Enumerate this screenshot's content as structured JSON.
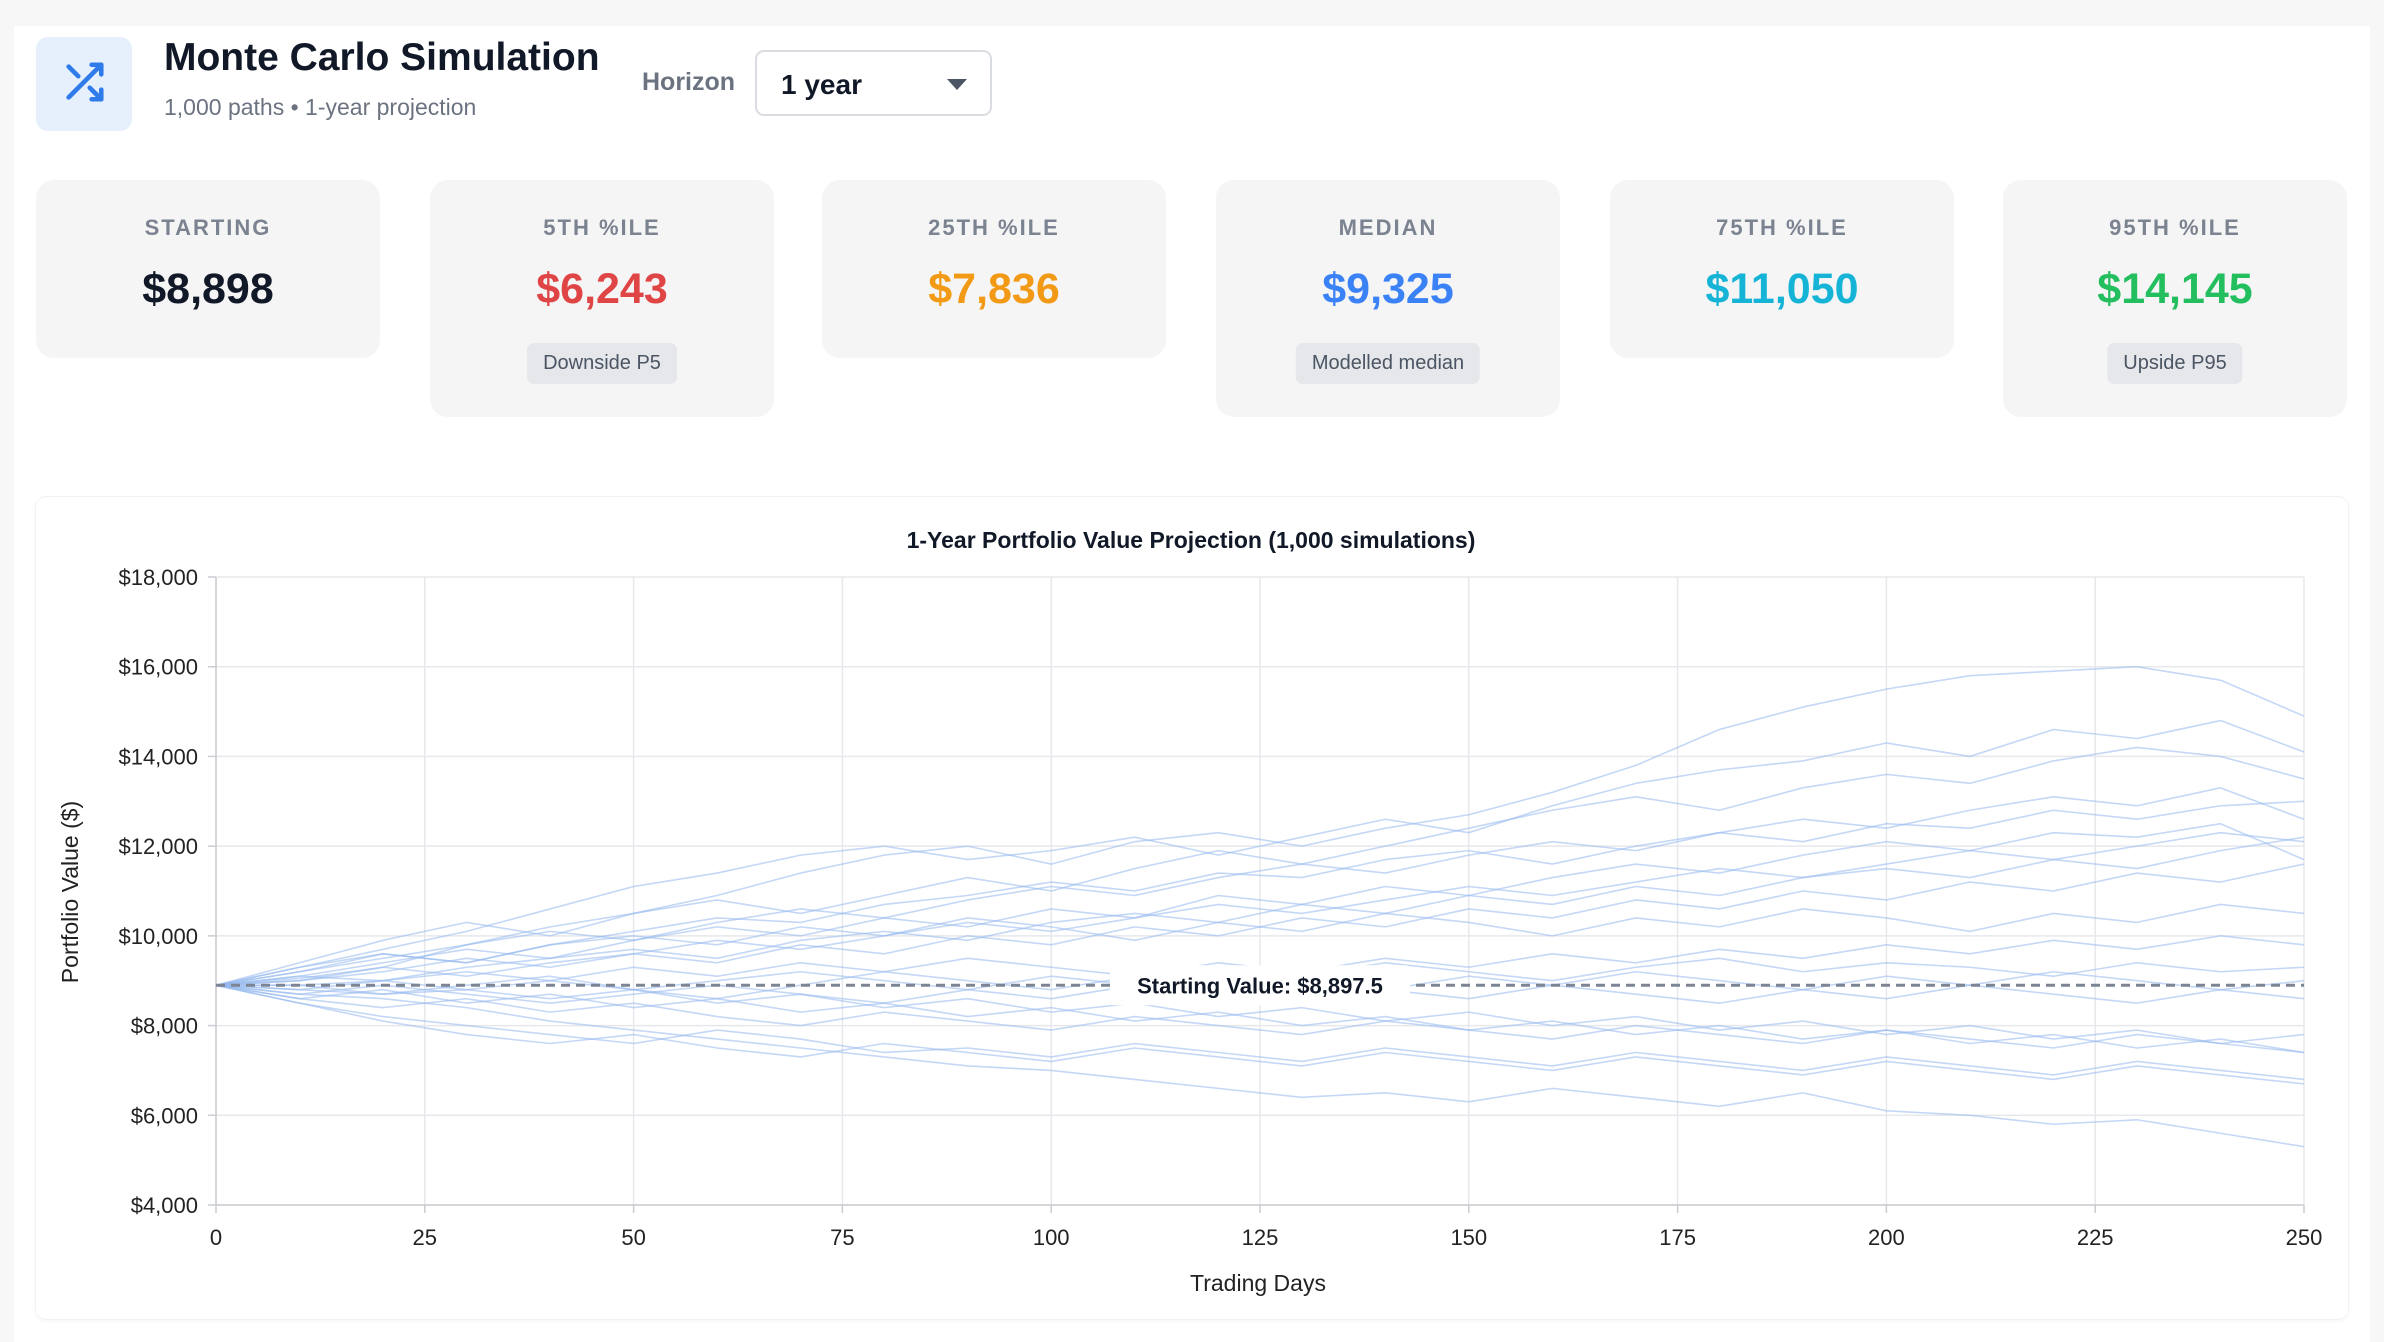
{
  "header": {
    "title": "Monte Carlo Simulation",
    "subtitle": "1,000 paths • 1-year projection",
    "app_icon": "shuffle-icon",
    "horizon_label": "Horizon",
    "horizon_value": "1 year",
    "horizon_icon": "chevron-down-icon"
  },
  "stats": [
    {
      "label": "STARTING",
      "value": "$8,898",
      "color": "#111827",
      "badge": ""
    },
    {
      "label": "5TH %ILE",
      "value": "$6,243",
      "color": "#e04545",
      "badge": "Downside P5"
    },
    {
      "label": "25TH %ILE",
      "value": "$7,836",
      "color": "#f29a16",
      "badge": ""
    },
    {
      "label": "MEDIAN",
      "value": "$9,325",
      "color": "#3b82f6",
      "badge": "Modelled median"
    },
    {
      "label": "75TH %ILE",
      "value": "$11,050",
      "color": "#15b4d6",
      "badge": ""
    },
    {
      "label": "95TH %ILE",
      "value": "$14,145",
      "color": "#23be5e",
      "badge": "Upside P95"
    }
  ],
  "chart_data": {
    "type": "line",
    "title": "1-Year Portfolio Value Projection (1,000 simulations)",
    "xlabel": "Trading Days",
    "ylabel": "Portfolio Value ($)",
    "xlim": [
      0,
      250
    ],
    "ylim": [
      4000,
      18000
    ],
    "x_ticks": [
      0,
      25,
      50,
      75,
      100,
      125,
      150,
      175,
      200,
      225,
      250
    ],
    "x_tick_labels": [
      "0",
      "25",
      "50",
      "75",
      "100",
      "125",
      "150",
      "175",
      "200",
      "225",
      "250"
    ],
    "y_ticks": [
      4000,
      6000,
      8000,
      10000,
      12000,
      14000,
      16000,
      18000
    ],
    "y_tick_labels": [
      "$4,000",
      "$6,000",
      "$8,000",
      "$10,000",
      "$12,000",
      "$14,000",
      "$16,000",
      "$18,000"
    ],
    "grid": true,
    "series_color": "#93b8ee",
    "reference_line": {
      "y": 8897.5,
      "label": "Starting Value: $8,897.5",
      "color": "#7d8594"
    },
    "x": [
      0,
      10,
      20,
      30,
      40,
      50,
      60,
      70,
      80,
      90,
      100,
      110,
      120,
      130,
      140,
      150,
      160,
      170,
      180,
      190,
      200,
      210,
      220,
      230,
      240,
      250
    ],
    "series": [
      {
        "values": [
          8898,
          9050,
          9300,
          9800,
          10200,
          10500,
          10900,
          11400,
          11800,
          12000,
          11600,
          12100,
          12300,
          12000,
          12400,
          12700,
          13200,
          13800,
          14600,
          15100,
          15500,
          15800,
          15900,
          16000,
          15700,
          14900
        ]
      },
      {
        "values": [
          8898,
          8700,
          8600,
          8400,
          8100,
          7900,
          7700,
          7500,
          7300,
          7100,
          7000,
          6800,
          6600,
          6400,
          6500,
          6300,
          6600,
          6400,
          6200,
          6500,
          6100,
          6000,
          5800,
          5900,
          5600,
          5300
        ]
      },
      {
        "values": [
          8898,
          9300,
          9700,
          10100,
          10600,
          11100,
          11400,
          11800,
          12000,
          11700,
          11900,
          12200,
          11800,
          12200,
          12600,
          12300,
          12900,
          13400,
          13700,
          13900,
          14300,
          14000,
          14600,
          14400,
          14800,
          14100
        ]
      },
      {
        "values": [
          8898,
          8800,
          8700,
          8900,
          9100,
          8800,
          8600,
          8900,
          9200,
          9000,
          8800,
          9100,
          9300,
          9100,
          9400,
          9200,
          9000,
          9300,
          9500,
          9200,
          9400,
          9300,
          9100,
          9400,
          9200,
          9300
        ]
      },
      {
        "values": [
          8898,
          9200,
          9600,
          9400,
          9800,
          10100,
          10400,
          10300,
          10700,
          10900,
          11200,
          11000,
          11400,
          11300,
          11700,
          11900,
          11600,
          12000,
          12300,
          12100,
          12500,
          12400,
          12800,
          12600,
          12900,
          13000
        ]
      },
      {
        "values": [
          8898,
          8500,
          8200,
          8000,
          7800,
          7600,
          7900,
          7700,
          7400,
          7500,
          7300,
          7600,
          7400,
          7200,
          7500,
          7300,
          7100,
          7400,
          7200,
          7000,
          7300,
          7100,
          6900,
          7200,
          7000,
          6800
        ]
      },
      {
        "values": [
          8898,
          9100,
          9400,
          9700,
          9500,
          9900,
          10200,
          10000,
          10400,
          10200,
          10600,
          10400,
          10900,
          10700,
          11100,
          10900,
          11300,
          11600,
          11400,
          11800,
          12100,
          11900,
          12300,
          12200,
          12500,
          11700
        ]
      },
      {
        "values": [
          8898,
          8900,
          9000,
          8800,
          8600,
          8800,
          8500,
          8700,
          8400,
          8600,
          8300,
          8500,
          8200,
          8400,
          8100,
          8300,
          8000,
          8200,
          7900,
          8100,
          7800,
          8000,
          7700,
          7900,
          7600,
          7800
        ]
      },
      {
        "values": [
          8898,
          9400,
          9900,
          10300,
          10000,
          10500,
          10800,
          10500,
          10900,
          11300,
          11000,
          11500,
          11900,
          11600,
          12000,
          12400,
          12800,
          13100,
          12800,
          13300,
          13600,
          13400,
          13900,
          14200,
          14000,
          13500
        ]
      },
      {
        "values": [
          8898,
          8600,
          8400,
          8600,
          8300,
          8500,
          8200,
          8000,
          8300,
          8100,
          7900,
          8200,
          8000,
          7800,
          8100,
          7900,
          7700,
          8000,
          7800,
          7600,
          7900,
          7700,
          7500,
          7800,
          7600,
          7400
        ]
      },
      {
        "values": [
          8898,
          9000,
          9300,
          9100,
          9400,
          9600,
          9400,
          9800,
          9600,
          10000,
          9800,
          10200,
          10000,
          10400,
          10200,
          10600,
          10400,
          10800,
          10600,
          11000,
          10800,
          11200,
          11000,
          11400,
          11200,
          11600
        ]
      },
      {
        "values": [
          8898,
          8800,
          9000,
          9200,
          9000,
          9300,
          9100,
          9400,
          9200,
          9500,
          9300,
          9100,
          9400,
          9200,
          9500,
          9300,
          9600,
          9400,
          9700,
          9500,
          9800,
          9600,
          9900,
          9700,
          10000,
          9800
        ]
      },
      {
        "values": [
          8898,
          8700,
          8900,
          8700,
          8500,
          8700,
          8900,
          8700,
          8500,
          8800,
          8600,
          8900,
          8700,
          8500,
          8800,
          8600,
          8900,
          8700,
          8500,
          8800,
          8600,
          8900,
          8700,
          8500,
          8800,
          8600
        ]
      },
      {
        "values": [
          8898,
          9200,
          9500,
          9800,
          10100,
          9900,
          10300,
          10600,
          10400,
          10800,
          11100,
          10900,
          11300,
          11600,
          11400,
          11800,
          12100,
          11900,
          12300,
          12600,
          12400,
          12800,
          13100,
          12900,
          13300,
          12600
        ]
      },
      {
        "values": [
          8898,
          8500,
          8100,
          7800,
          7600,
          7800,
          7500,
          7300,
          7600,
          7400,
          7200,
          7500,
          7300,
          7100,
          7400,
          7200,
          7000,
          7300,
          7100,
          6900,
          7200,
          7000,
          6800,
          7100,
          6900,
          6700
        ]
      },
      {
        "values": [
          8898,
          9100,
          9000,
          9300,
          9500,
          9700,
          9500,
          9900,
          10100,
          9900,
          10300,
          10500,
          10300,
          10700,
          10500,
          10900,
          10700,
          11100,
          10900,
          11300,
          11500,
          11300,
          11700,
          11500,
          11900,
          12200
        ]
      },
      {
        "values": [
          8898,
          8900,
          8700,
          8800,
          9000,
          8800,
          9000,
          9200,
          9000,
          8800,
          9100,
          8900,
          9200,
          9000,
          8800,
          9100,
          8900,
          9200,
          9000,
          8800,
          9100,
          8900,
          9200,
          9000,
          8800,
          9000
        ]
      },
      {
        "values": [
          8898,
          9300,
          9600,
          9400,
          9800,
          10000,
          9800,
          10200,
          10000,
          10400,
          10200,
          9900,
          10300,
          10100,
          10500,
          10300,
          10000,
          10400,
          10200,
          10600,
          10400,
          10100,
          10500,
          10300,
          10700,
          10500
        ]
      },
      {
        "values": [
          8898,
          8600,
          8800,
          8500,
          8700,
          8400,
          8600,
          8300,
          8500,
          8200,
          8400,
          8100,
          8300,
          8000,
          8200,
          7900,
          8100,
          7800,
          8000,
          7700,
          7900,
          7600,
          7800,
          7500,
          7700,
          7400
        ]
      },
      {
        "values": [
          8898,
          9000,
          9200,
          9500,
          9300,
          9600,
          9900,
          9700,
          10000,
          10300,
          10100,
          10400,
          10700,
          10500,
          10800,
          11100,
          10900,
          11200,
          11500,
          11300,
          11600,
          11900,
          11700,
          12000,
          12300,
          12100
        ]
      }
    ]
  }
}
